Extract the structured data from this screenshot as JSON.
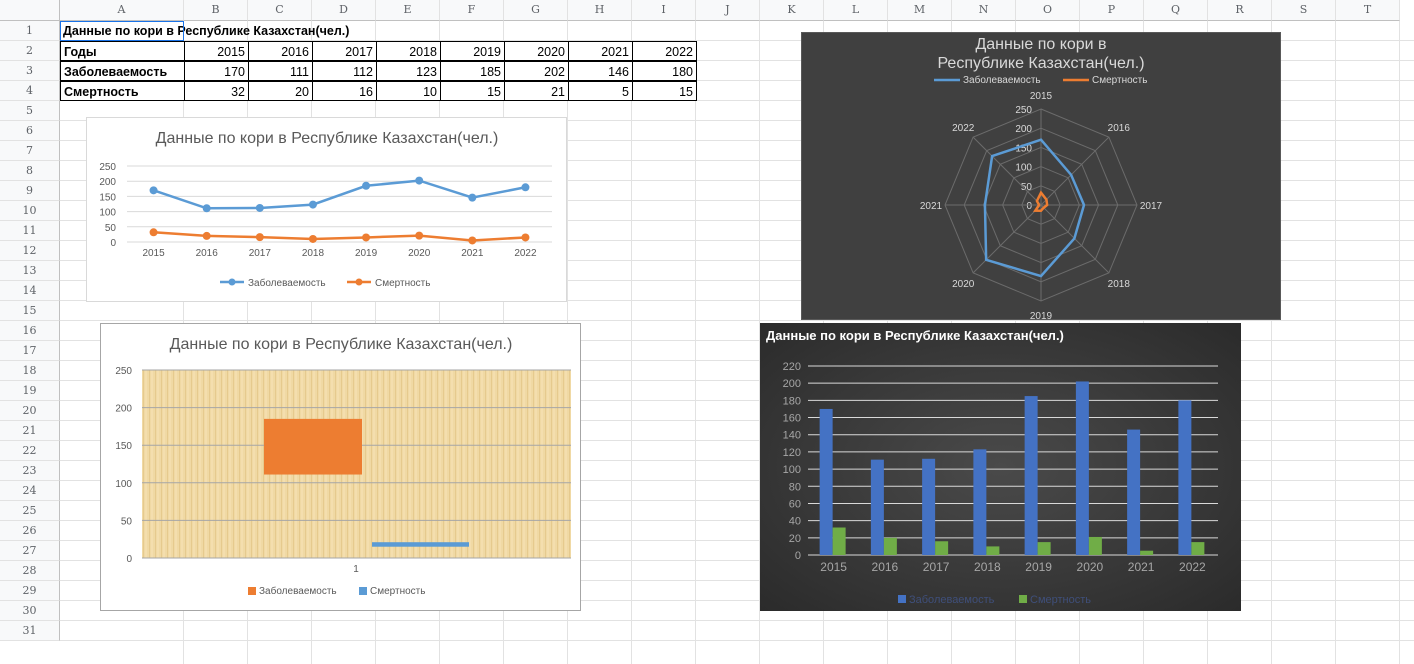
{
  "sheet": {
    "columns": [
      "A",
      "B",
      "C",
      "D",
      "E",
      "F",
      "G",
      "H",
      "I",
      "J",
      "K",
      "L",
      "M",
      "N",
      "O",
      "P",
      "Q",
      "R",
      "S",
      "T"
    ],
    "rows": [
      "1",
      "2",
      "3",
      "4",
      "5",
      "6",
      "7",
      "8",
      "9",
      "10",
      "11",
      "12",
      "13",
      "14",
      "15",
      "16",
      "17",
      "18",
      "19",
      "20",
      "21",
      "22",
      "23",
      "24",
      "25",
      "26",
      "27",
      "28",
      "29",
      "30",
      "31"
    ],
    "title_cell": "Данные по кори в Республике Казахстан(чел.)",
    "table": {
      "header_label": "Годы",
      "years": [
        "2015",
        "2016",
        "2017",
        "2018",
        "2019",
        "2020",
        "2021",
        "2022"
      ],
      "rows": [
        {
          "label": "Заболеваемость",
          "values": [
            "170",
            "111",
            "112",
            "123",
            "185",
            "202",
            "146",
            "180"
          ]
        },
        {
          "label": "Смертность",
          "values": [
            "32",
            "20",
            "16",
            "10",
            "15",
            "21",
            "5",
            "15"
          ]
        }
      ]
    }
  },
  "chart_data": [
    {
      "type": "line",
      "title": "Данные по кори в Республике Казахстан(чел.)",
      "categories": [
        "2015",
        "2016",
        "2017",
        "2018",
        "2019",
        "2020",
        "2021",
        "2022"
      ],
      "series": [
        {
          "name": "Заболеваемость",
          "values": [
            170,
            111,
            112,
            123,
            185,
            202,
            146,
            180
          ],
          "color": "#5b9bd5"
        },
        {
          "name": "Смертность",
          "values": [
            32,
            20,
            16,
            10,
            15,
            21,
            5,
            15
          ],
          "color": "#ed7d31"
        }
      ],
      "y_ticks": [
        "0",
        "50",
        "100",
        "150",
        "200",
        "250"
      ],
      "ylim": [
        0,
        250
      ],
      "grid": true,
      "legend": "bottom"
    },
    {
      "type": "radar",
      "title": "Данные по кори в Республике Казахстан(чел.)",
      "categories": [
        "2015",
        "2016",
        "2017",
        "2018",
        "2019",
        "2020",
        "2021",
        "2022"
      ],
      "series": [
        {
          "name": "Заболеваемость",
          "values": [
            170,
            111,
            112,
            123,
            185,
            202,
            146,
            180
          ],
          "color": "#5b9bd5"
        },
        {
          "name": "Смертность",
          "values": [
            32,
            20,
            16,
            10,
            15,
            21,
            5,
            15
          ],
          "color": "#ed7d31"
        }
      ],
      "r_ticks": [
        "0",
        "50",
        "100",
        "150",
        "200",
        "250"
      ],
      "rlim": [
        0,
        250
      ],
      "legend": "top",
      "background": "#404040"
    },
    {
      "type": "bar",
      "title": "Данные по кори в Республике Казахстан(чел.)",
      "categories": [
        "1"
      ],
      "series": [
        {
          "name": "Заболеваемость",
          "low": 111,
          "high": 185,
          "color": "#ed7d31"
        },
        {
          "name": "Смертность",
          "low": 15,
          "high": 21,
          "color": "#5b9bd5"
        }
      ],
      "y_ticks": [
        "0",
        "50",
        "100",
        "150",
        "200",
        "250"
      ],
      "ylim": [
        0,
        250
      ],
      "grid": true,
      "legend": "bottom",
      "plot_background": "parchment texture"
    },
    {
      "type": "bar",
      "title": "Данные по кори в Республике Казахстан(чел.)",
      "categories": [
        "2015",
        "2016",
        "2017",
        "2018",
        "2019",
        "2020",
        "2021",
        "2022"
      ],
      "series": [
        {
          "name": "Заболеваемость",
          "values": [
            170,
            111,
            112,
            123,
            185,
            202,
            146,
            180
          ],
          "color": "#4472c4"
        },
        {
          "name": "Смертность",
          "values": [
            32,
            20,
            16,
            10,
            15,
            21,
            5,
            15
          ],
          "color": "#70ad47"
        }
      ],
      "y_ticks": [
        "0",
        "20",
        "40",
        "60",
        "80",
        "100",
        "120",
        "140",
        "160",
        "180",
        "200",
        "220"
      ],
      "ylim": [
        0,
        220
      ],
      "grid": true,
      "legend": "bottom",
      "background": "#333333"
    }
  ]
}
